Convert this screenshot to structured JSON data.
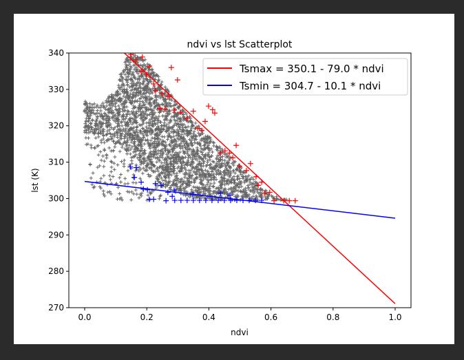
{
  "chart_data": {
    "type": "scatter",
    "title": "ndvi vs lst Scatterplot",
    "xlabel": "ndvi",
    "ylabel": "lst (K)",
    "xlim": [
      -0.05,
      1.05
    ],
    "ylim": [
      270,
      340
    ],
    "xticks": [
      "0.0",
      "0.2",
      "0.4",
      "0.6",
      "0.8",
      "1.0"
    ],
    "xtick_values": [
      0,
      0.2,
      0.4,
      0.6,
      0.8,
      1.0
    ],
    "yticks": [
      "270",
      "280",
      "290",
      "300",
      "310",
      "320",
      "330",
      "340"
    ],
    "ytick_values": [
      270,
      280,
      290,
      300,
      310,
      320,
      330,
      340
    ],
    "grid": false,
    "legend_position": "top-right",
    "colors": {
      "points": "#666666",
      "tsmax": "#ff0000",
      "tsmin": "#0000ff",
      "frame": "#2b2b2b"
    },
    "lines": [
      {
        "name": "Tsmax = 350.1 - 79.0 * ndvi",
        "intercept": 350.1,
        "slope": -79.0,
        "color": "#ff0000"
      },
      {
        "name": "Tsmin = 304.7 - 10.1 * ndvi",
        "intercept": 304.7,
        "slope": -10.1,
        "color": "#0000ff"
      }
    ],
    "all_points_cloud": {
      "marker": "+",
      "dense_region": [
        [
          0,
          327
        ],
        [
          0.05,
          325.5
        ],
        [
          0.1,
          330
        ],
        [
          0.13,
          338
        ],
        [
          0.15,
          340
        ],
        [
          0.2,
          338
        ],
        [
          0.3,
          326
        ],
        [
          0.45,
          313
        ],
        [
          0.6,
          301
        ],
        [
          0.66,
          299.5
        ],
        [
          0.45,
          299.5
        ],
        [
          0.35,
          300
        ],
        [
          0.25,
          303
        ],
        [
          0.18,
          310
        ],
        [
          0.12,
          314
        ],
        [
          0.05,
          316.5
        ],
        [
          0,
          318
        ]
      ],
      "dense_count": 2600,
      "sparse_region": [
        [
          0.0,
          318
        ],
        [
          0.12,
          314
        ],
        [
          0.2,
          309
        ],
        [
          0.26,
          300
        ],
        [
          0.2,
          299.3
        ],
        [
          0.03,
          299.3
        ]
      ],
      "sparse_count": 140
    },
    "tsmax_points": [
      [
        0.149,
        339.6
      ],
      [
        0.186,
        338.9
      ],
      [
        0.164,
        338.1
      ],
      [
        0.208,
        336.2
      ],
      [
        0.279,
        336
      ],
      [
        0.182,
        334.9
      ],
      [
        0.2,
        334.1
      ],
      [
        0.299,
        332.6
      ],
      [
        0.222,
        331.5
      ],
      [
        0.228,
        329.6
      ],
      [
        0.248,
        328.8
      ],
      [
        0.268,
        328
      ],
      [
        0.242,
        324.8
      ],
      [
        0.259,
        324.6
      ],
      [
        0.288,
        324.3
      ],
      [
        0.308,
        323.7
      ],
      [
        0.33,
        322
      ],
      [
        0.35,
        324
      ],
      [
        0.388,
        321.2
      ],
      [
        0.399,
        325.4
      ],
      [
        0.412,
        324.4
      ],
      [
        0.419,
        323.5
      ],
      [
        0.364,
        319.3
      ],
      [
        0.377,
        318.7
      ],
      [
        0.437,
        312.5
      ],
      [
        0.452,
        313.1
      ],
      [
        0.466,
        312.5
      ],
      [
        0.488,
        314.6
      ],
      [
        0.477,
        311.2
      ],
      [
        0.499,
        308.9
      ],
      [
        0.534,
        309.6
      ],
      [
        0.521,
        307.7
      ],
      [
        0.552,
        306
      ],
      [
        0.57,
        304.5
      ],
      [
        0.559,
        303.6
      ],
      [
        0.579,
        301.5
      ],
      [
        0.596,
        301.7
      ],
      [
        0.61,
        299.4
      ],
      [
        0.641,
        299.4
      ],
      [
        0.659,
        299.4
      ],
      [
        0.678,
        299.4
      ]
    ],
    "tsmin_points": [
      [
        0.147,
        308.7
      ],
      [
        0.166,
        308.5
      ],
      [
        0.16,
        305.8
      ],
      [
        0.182,
        304.5
      ],
      [
        0.189,
        302.6
      ],
      [
        0.202,
        302.4
      ],
      [
        0.228,
        304.1
      ],
      [
        0.246,
        303.6
      ],
      [
        0.268,
        301.7
      ],
      [
        0.288,
        302.3
      ],
      [
        0.282,
        300.6
      ],
      [
        0.208,
        299.8
      ],
      [
        0.222,
        299.8
      ],
      [
        0.262,
        299.4
      ],
      [
        0.348,
        301.1
      ],
      [
        0.437,
        301.5
      ],
      [
        0.468,
        300.9
      ],
      [
        0.29,
        299.5
      ],
      [
        0.31,
        299.5
      ],
      [
        0.33,
        299.5
      ],
      [
        0.35,
        299.5
      ],
      [
        0.37,
        299.5
      ],
      [
        0.39,
        299.5
      ],
      [
        0.41,
        299.5
      ],
      [
        0.43,
        299.5
      ],
      [
        0.45,
        299.5
      ],
      [
        0.47,
        299.5
      ],
      [
        0.49,
        299.5
      ],
      [
        0.51,
        299.5
      ],
      [
        0.53,
        299.5
      ],
      [
        0.55,
        299.5
      ],
      [
        0.57,
        299.5
      ]
    ]
  }
}
